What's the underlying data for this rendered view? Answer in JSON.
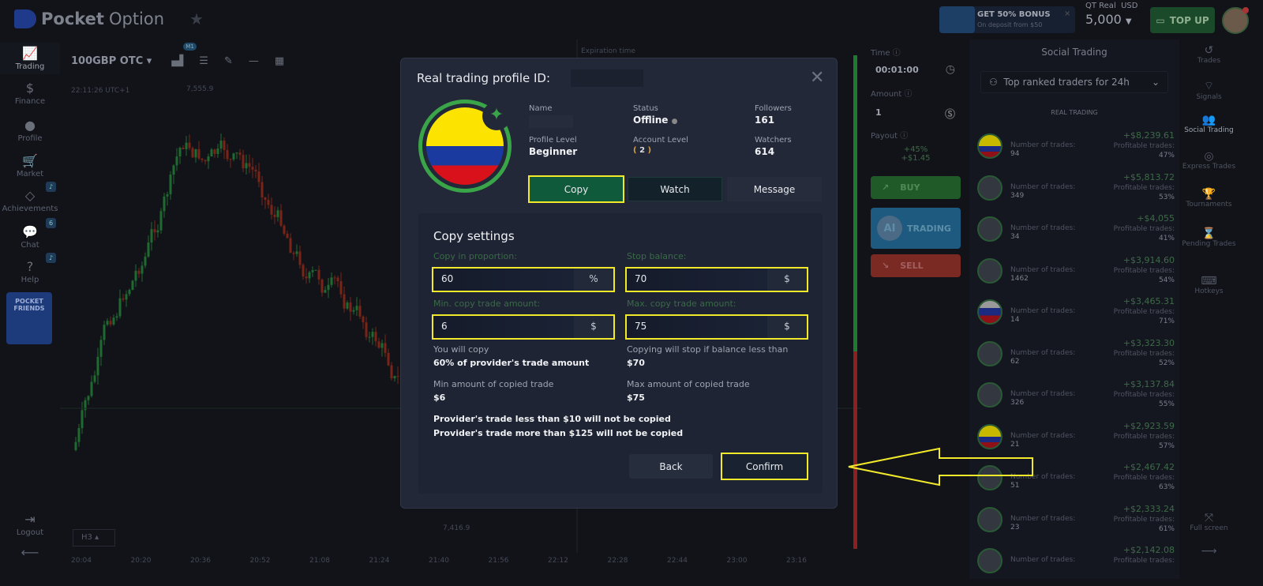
{
  "header": {
    "brand_bold": "Pocket",
    "brand_light": "Option",
    "bonus_title": "GET 50% BONUS",
    "bonus_sub": "On deposit from $50",
    "account_type": "QT Real",
    "currency": "USD",
    "balance": "5,000",
    "topup": "TOP UP"
  },
  "leftnav": [
    {
      "label": "Trading",
      "icon": "chart-line-icon"
    },
    {
      "label": "Finance",
      "icon": "dollar-icon"
    },
    {
      "label": "Profile",
      "icon": "user-icon"
    },
    {
      "label": "Market",
      "icon": "cart-icon"
    },
    {
      "label": "Achievements",
      "icon": "diamond-icon"
    },
    {
      "label": "Chat",
      "icon": "chat-icon"
    },
    {
      "label": "Help",
      "icon": "help-icon"
    }
  ],
  "chat_badge": "6",
  "friends_label": "POCKET FRIENDS",
  "logout": "Logout",
  "chart": {
    "asset": "100GBP OTC",
    "timeframe_badge": "M1",
    "time_label": "22:11:26 UTC+1",
    "price_high": "7,555.9",
    "price_low": "7,416.9",
    "expiration": "Expiration time",
    "period": "H3",
    "time_ticks": [
      "20:04",
      "20:20",
      "20:36",
      "20:52",
      "21:08",
      "21:24",
      "21:40",
      "21:56",
      "22:12",
      "22:28",
      "22:44",
      "23:00",
      "23:16"
    ]
  },
  "panel": {
    "time_label": "Time",
    "time_value": "00:01:00",
    "amount_label": "Amount",
    "amount_value": "1",
    "payout_label": "Payout",
    "payout_pct": "+45%",
    "payout_amount": "+$1.45",
    "buy": "BUY",
    "ai": "AI",
    "ai_trading": "TRADING",
    "sell": "SELL"
  },
  "social": {
    "title": "Social Trading",
    "filter": "Top ranked traders for 24h",
    "section": "REAL TRADING",
    "trades_label": "Number of trades:",
    "profit_label": "Profitable trades:",
    "traders": [
      {
        "trades": "94",
        "profit": "+$8,239.61",
        "pct": "47%",
        "flag": "colombia"
      },
      {
        "trades": "349",
        "profit": "+$5,813.72",
        "pct": "53%"
      },
      {
        "trades": "34",
        "profit": "+$4,055",
        "pct": "41%"
      },
      {
        "trades": "1462",
        "profit": "+$3,914.60",
        "pct": "54%"
      },
      {
        "trades": "14",
        "profit": "+$3,465.31",
        "pct": "71%",
        "flag": "russia"
      },
      {
        "trades": "62",
        "profit": "+$3,323.30",
        "pct": "52%"
      },
      {
        "trades": "326",
        "profit": "+$3,137.84",
        "pct": "55%"
      },
      {
        "trades": "21",
        "profit": "+$2,923.59",
        "pct": "57%",
        "flag": "colombia"
      },
      {
        "trades": "51",
        "profit": "+$2,467.42",
        "pct": "63%"
      },
      {
        "trades": "23",
        "profit": "+$2,333.24",
        "pct": "61%"
      },
      {
        "trades": "",
        "profit": "+$2,142.08",
        "pct": ""
      }
    ]
  },
  "rightnav": [
    {
      "label": "Trades",
      "icon": "history-icon"
    },
    {
      "label": "Signals",
      "icon": "signal-icon"
    },
    {
      "label": "Social Trading",
      "icon": "users-icon"
    },
    {
      "label": "Express Trades",
      "icon": "target-icon"
    },
    {
      "label": "Tournaments",
      "icon": "trophy-icon"
    },
    {
      "label": "Pending Trades",
      "icon": "hourglass-icon"
    },
    {
      "label": "Hotkeys",
      "icon": "keyboard-icon"
    }
  ],
  "fullscreen": "Full screen",
  "modal": {
    "title": "Real trading profile ID:",
    "name_label": "Name",
    "status_label": "Status",
    "status_value": "Offline",
    "followers_label": "Followers",
    "followers_value": "161",
    "profile_level_label": "Profile Level",
    "profile_level_value": "Beginner",
    "account_level_label": "Account Level",
    "account_level_value": "2",
    "watchers_label": "Watchers",
    "watchers_value": "614",
    "copy": "Copy",
    "watch": "Watch",
    "message": "Message",
    "settings": {
      "title": "Copy settings",
      "proportion_label": "Copy in proportion:",
      "proportion_value": "60",
      "proportion_unit": "%",
      "stop_label": "Stop balance:",
      "stop_value": "70",
      "stop_unit": "$",
      "min_label": "Min. copy trade amount:",
      "min_value": "6",
      "min_unit": "$",
      "max_label": "Max. copy trade amount:",
      "max_value": "75",
      "max_unit": "$",
      "you_copy": "You will copy",
      "you_copy_value": "60% of provider's trade amount",
      "stop_info": "Copying will stop if balance less than",
      "stop_info_value": "$70",
      "min_info": "Min amount of copied trade",
      "min_info_value": "$6",
      "max_info": "Max amount of copied trade",
      "max_info_value": "$75",
      "note1": "Provider's trade less than $10 will not be copied",
      "note2": "Provider's trade more than $125 will not be copied",
      "back": "Back",
      "confirm": "Confirm"
    }
  },
  "colors": {
    "highlight": "#f2e92a",
    "buy": "#2e8b3a",
    "sell": "#c0392b",
    "accent_green": "#3aa548"
  }
}
